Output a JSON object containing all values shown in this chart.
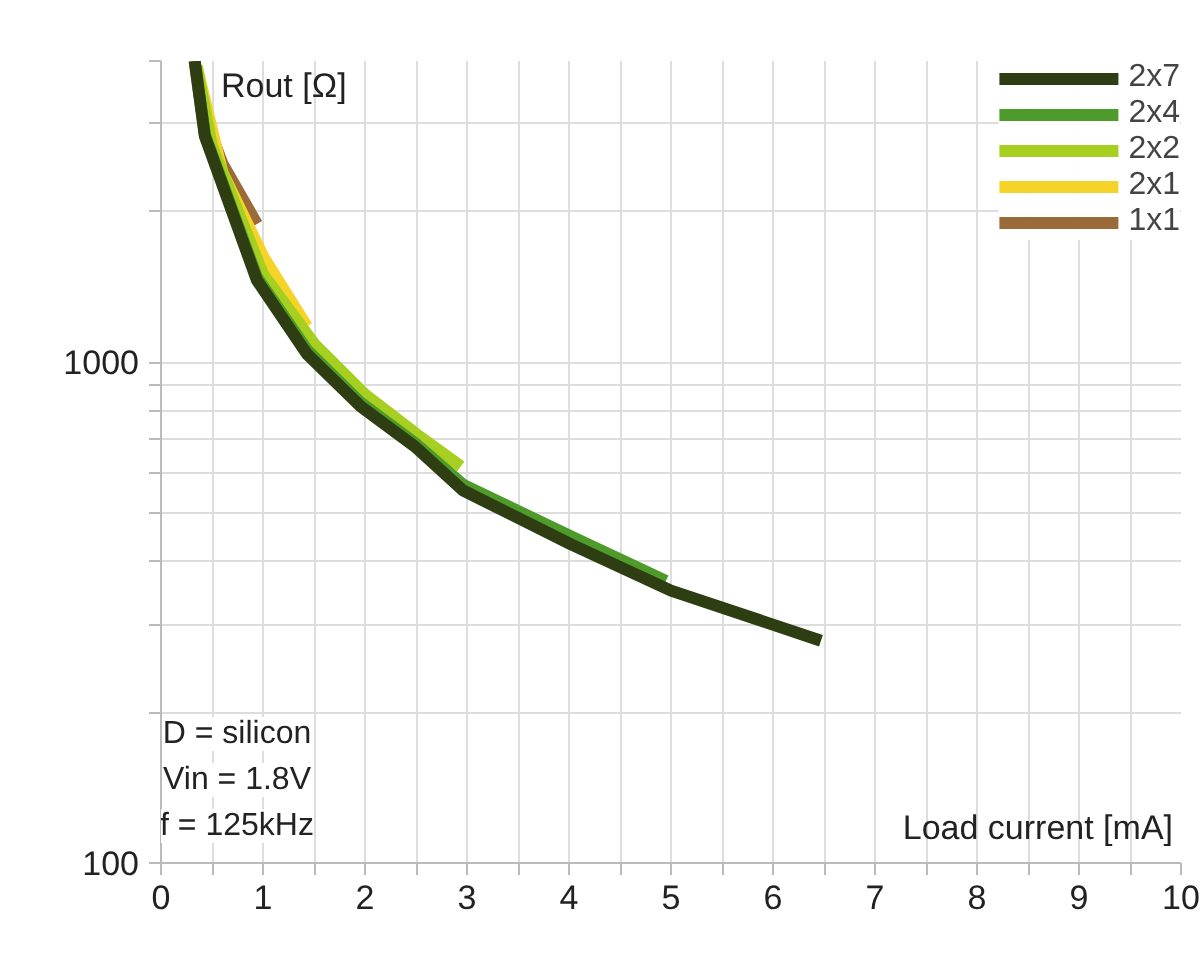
{
  "chart_data": {
    "type": "line",
    "xlabel": "Load current [mA]",
    "ylabel": "Rout [Ω]",
    "log": "y",
    "xlim": [
      0,
      10
    ],
    "ylim": [
      100,
      4000
    ],
    "xticks": [
      0,
      {
        "value": 0.5,
        "label": null
      },
      1,
      {
        "value": 1.5,
        "label": null
      },
      2,
      {
        "value": 2.5,
        "label": null
      },
      3,
      {
        "value": 3.5,
        "label": null
      },
      4,
      {
        "value": 4.5,
        "label": null
      },
      5,
      {
        "value": 5.5,
        "label": null
      },
      6,
      {
        "value": 6.5,
        "label": null
      },
      7,
      {
        "value": 7.5,
        "label": null
      },
      8,
      {
        "value": 8.5,
        "label": null
      },
      9,
      {
        "value": 9.5,
        "label": null
      },
      10
    ],
    "yticks": [
      100,
      {
        "value": 200,
        "label": null
      },
      {
        "value": 300,
        "label": null
      },
      {
        "value": 400,
        "label": null
      },
      {
        "value": 500,
        "label": null
      },
      {
        "value": 600,
        "label": null
      },
      {
        "value": 700,
        "label": null
      },
      {
        "value": 800,
        "label": null
      },
      {
        "value": 900,
        "label": null
      },
      1000,
      {
        "value": 2000,
        "label": null
      },
      {
        "value": 3000,
        "label": null
      },
      {
        "value": 4000,
        "label": null
      }
    ],
    "grid": true,
    "legend": "top right",
    "marker": "none",
    "line_style": "solid",
    "annotations": [
      "D = silicon",
      "Vin = 1.8V",
      "f = 125kHz"
    ],
    "series": [
      {
        "name": "2x7",
        "color": "#2f3d12",
        "x": [
          0.33,
          0.43,
          0.94,
          1.43,
          1.96,
          2.49,
          2.96,
          4.02,
          5.0,
          6.47
        ],
        "values": [
          4000,
          2830,
          1460,
          1040,
          816,
          679,
          555,
          433,
          350,
          278
        ]
      },
      {
        "name": "2x4",
        "color": "#4e9a2a",
        "x": [
          0.33,
          0.43,
          0.94,
          1.43,
          1.96,
          2.49,
          2.96,
          4.02,
          4.95
        ],
        "values": [
          4000,
          2850,
          1480,
          1060,
          830,
          690,
          570,
          449,
          366
        ]
      },
      {
        "name": "2x2",
        "color": "#a6cf1f",
        "x": [
          0.35,
          0.5,
          1.0,
          1.5,
          2.0,
          2.5,
          2.94
        ],
        "values": [
          3900,
          2700,
          1500,
          1090,
          863,
          720,
          620
        ]
      },
      {
        "name": "2x1",
        "color": "#f5d328",
        "x": [
          0.35,
          0.6,
          1.0,
          1.43
        ],
        "values": [
          3900,
          2400,
          1630,
          1180
        ]
      },
      {
        "name": "1x1",
        "color": "#9a6a38",
        "x": [
          0.39,
          0.6,
          0.94
        ],
        "values": [
          3250,
          2500,
          1890
        ]
      }
    ]
  }
}
